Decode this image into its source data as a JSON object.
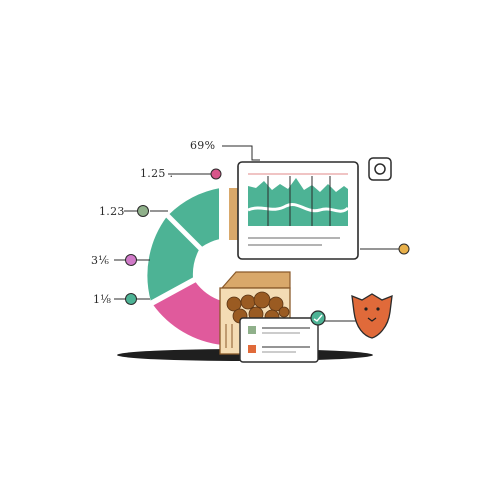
{
  "callouts": {
    "top": "69%",
    "a": "1.25 .",
    "b": "1.23",
    "c": "3⅙",
    "d": "1⅛"
  },
  "colors": {
    "teal": "#4db395",
    "teal_dark": "#2f8f76",
    "pink": "#e05a9c",
    "orange": "#e06a3a",
    "tan": "#d9a86a",
    "brown": "#8a5a2b",
    "ink": "#1f1f1f",
    "purple_dot": "#d07ac8",
    "green_dot": "#8fb08a",
    "red_dot": "#d8568a",
    "yellow_dot": "#e8b04a"
  },
  "icons": {
    "monitor_corner": "circle-target-icon",
    "mascot": "fox-face-icon",
    "badge": "check-arrow-icon"
  }
}
